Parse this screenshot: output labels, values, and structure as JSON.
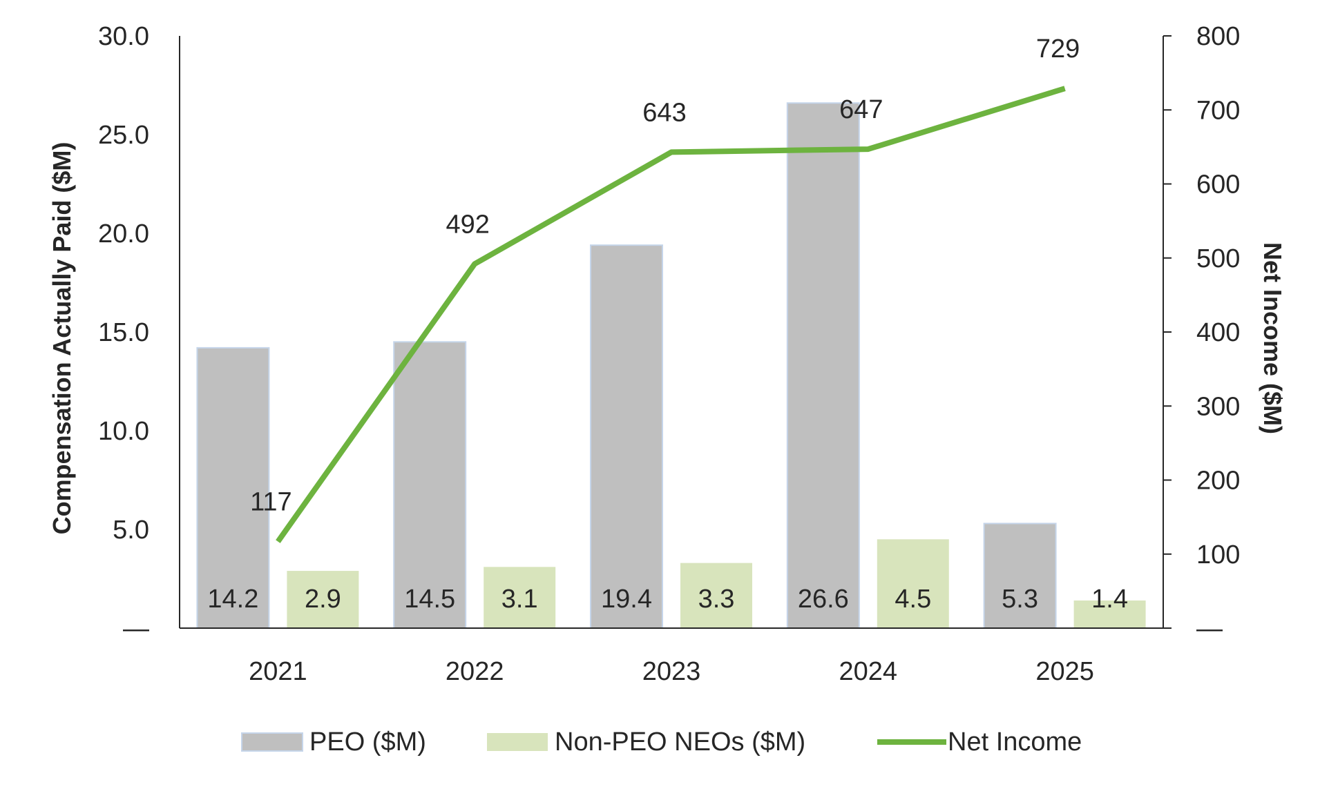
{
  "chart_data": {
    "type": "bar+line",
    "categories": [
      "2021",
      "2022",
      "2023",
      "2024",
      "2025"
    ],
    "series": [
      {
        "name": "PEO ($M)",
        "type": "bar",
        "axis": "left",
        "color": "#bfbfbf",
        "edge_color": "#c5d5ea",
        "values": [
          14.2,
          14.5,
          19.4,
          26.6,
          5.3
        ],
        "labels": [
          "14.2",
          "14.5",
          "19.4",
          "26.6",
          "5.3"
        ]
      },
      {
        "name": "Non-PEO NEOs ($M)",
        "type": "bar",
        "axis": "left",
        "color": "#d8e4bc",
        "values": [
          2.9,
          3.1,
          3.3,
          4.5,
          1.4
        ],
        "labels": [
          "2.9",
          "3.1",
          "3.3",
          "4.5",
          "1.4"
        ]
      },
      {
        "name": "Net Income",
        "type": "line",
        "axis": "right",
        "color": "#6db33f",
        "values": [
          117,
          492,
          643,
          647,
          729
        ],
        "labels": [
          "117",
          "492",
          "643",
          "647",
          "729"
        ]
      }
    ],
    "ylabel": "Compensation Actually Paid ($M)",
    "y2label": "Net Income ($M)",
    "ylim": [
      0,
      30
    ],
    "y2lim": [
      0,
      800
    ],
    "yticks": [
      "—",
      "5.0",
      "10.0",
      "15.0",
      "20.0",
      "25.0",
      "30.0"
    ],
    "y2ticks": [
      "—",
      "100",
      "200",
      "300",
      "400",
      "500",
      "600",
      "700",
      "800"
    ],
    "grid": false,
    "legend": "bottom"
  }
}
